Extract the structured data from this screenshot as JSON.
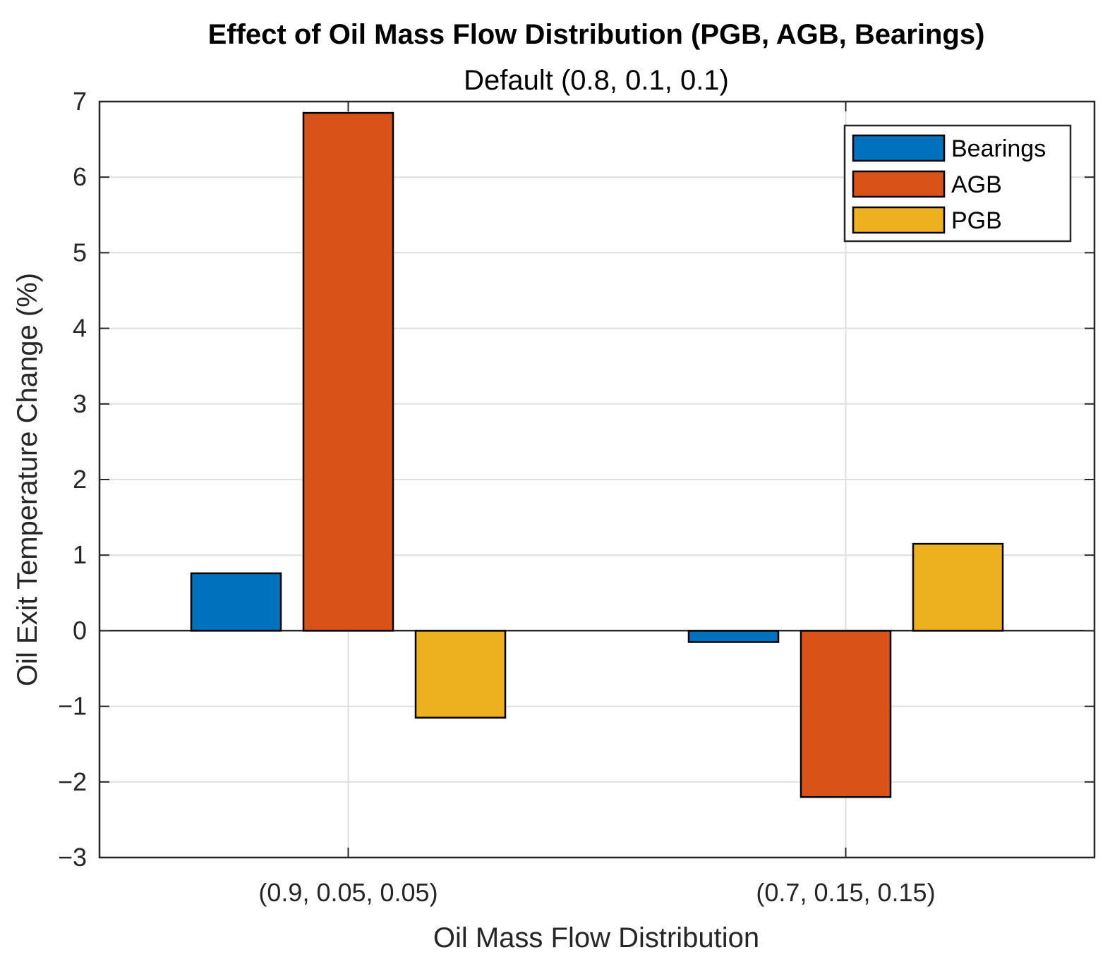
{
  "chart_data": {
    "type": "bar",
    "title": "Effect of Oil Mass Flow Distribution (PGB, AGB, Bearings)",
    "subtitle": "Default (0.8, 0.1, 0.1)",
    "xlabel": "Oil Mass Flow Distribution",
    "ylabel": "Oil Exit Temperature Change (%)",
    "categories": [
      "(0.9, 0.05, 0.05)",
      "(0.7, 0.15, 0.15)"
    ],
    "series": [
      {
        "name": "Bearings",
        "color": "#0072BD",
        "values": [
          0.76,
          -0.15
        ]
      },
      {
        "name": "AGB",
        "color": "#D95319",
        "values": [
          6.85,
          -2.2
        ]
      },
      {
        "name": "PGB",
        "color": "#EDB120",
        "values": [
          -1.15,
          1.15
        ]
      }
    ],
    "ylim": [
      -3,
      7
    ],
    "yticks": [
      -3,
      -2,
      -1,
      0,
      1,
      2,
      3,
      4,
      5,
      6,
      7
    ],
    "ytick_labels": [
      "−3",
      "−2",
      "−1",
      "0",
      "1",
      "2",
      "3",
      "4",
      "5",
      "6",
      "7"
    ],
    "grid": true,
    "legend_position": "top-right"
  }
}
